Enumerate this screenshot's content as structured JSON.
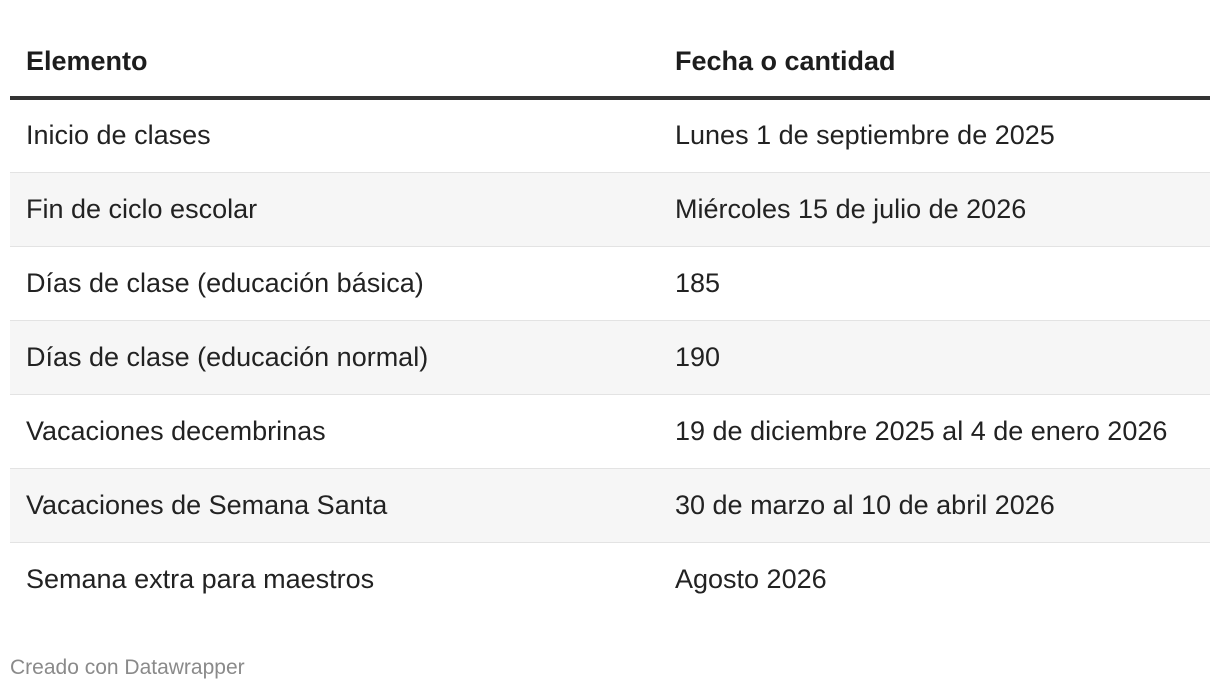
{
  "table": {
    "headers": [
      "Elemento",
      "Fecha o cantidad"
    ],
    "rows": [
      [
        "Inicio de clases",
        "Lunes 1 de septiembre de 2025"
      ],
      [
        "Fin de ciclo escolar",
        "Miércoles 15 de julio de 2026"
      ],
      [
        "Días de clase (educación básica)",
        "185"
      ],
      [
        "Días de clase (educación normal)",
        "190"
      ],
      [
        "Vacaciones decembrinas",
        "19 de diciembre 2025 al 4 de enero 2026"
      ],
      [
        "Vacaciones de Semana Santa",
        "30 de marzo al 10 de abril 2026"
      ],
      [
        "Semana extra para maestros",
        "Agosto 2026"
      ]
    ]
  },
  "footer": {
    "credit": "Creado con Datawrapper"
  }
}
